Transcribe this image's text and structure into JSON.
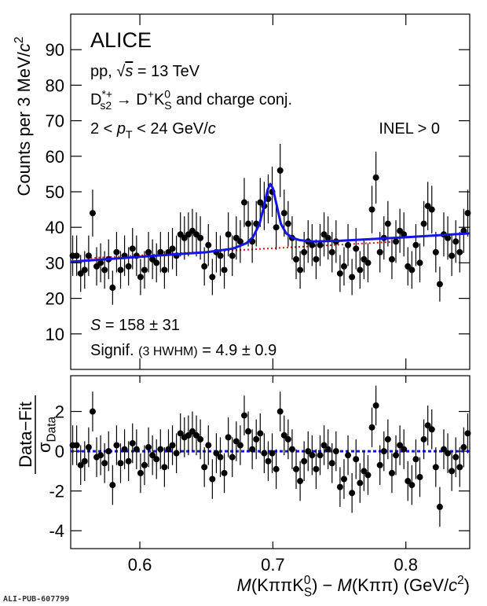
{
  "footer": "ALI-PUB-607799",
  "chart_data": [
    {
      "type": "scatter",
      "ylabel": [
        {
          "t": "Counts per 3 MeV/"
        },
        {
          "t": "c",
          "s": "it"
        },
        {
          "t": "2",
          "s": "sup"
        }
      ],
      "annotations": [
        [
          {
            "t": "ALICE"
          }
        ],
        [
          {
            "t": "pp, "
          },
          {
            "t": "√"
          },
          {
            "t": "s",
            "s": "it over"
          },
          {
            "t": " = 13 TeV"
          }
        ],
        [
          {
            "t": "D"
          },
          {
            "t": "*+",
            "s": "sup"
          },
          {
            "t": "s2",
            "s": "sub"
          },
          {
            "t": " → D"
          },
          {
            "t": "+",
            "s": "sup"
          },
          {
            "t": "K"
          },
          {
            "t": "0",
            "s": "sup"
          },
          {
            "t": "S",
            "s": "sub"
          },
          {
            "t": " and charge conj."
          }
        ],
        [
          {
            "t": "2 < "
          },
          {
            "t": "p",
            "s": "it"
          },
          {
            "t": "T",
            "s": "sub"
          },
          {
            "t": " < 24 GeV/"
          },
          {
            "t": "c",
            "s": "it"
          }
        ],
        [
          {
            "t": "INEL > 0"
          }
        ],
        [
          {
            "t": "S",
            "s": "it"
          },
          {
            "t": " = 158 ± 31"
          }
        ],
        [
          {
            "t": "Signif. "
          },
          {
            "t": "(3 HWHM)",
            "s": "small"
          },
          {
            "t": " = 4.9 ± 0.9"
          }
        ]
      ],
      "x": [
        0.5495,
        0.5525,
        0.5555,
        0.5585,
        0.5615,
        0.5645,
        0.5675,
        0.5705,
        0.5735,
        0.5765,
        0.5795,
        0.5825,
        0.5855,
        0.5885,
        0.5915,
        0.5945,
        0.5975,
        0.6005,
        0.6035,
        0.6065,
        0.6095,
        0.6125,
        0.6155,
        0.6185,
        0.6215,
        0.6245,
        0.6275,
        0.6305,
        0.6335,
        0.6365,
        0.6395,
        0.6425,
        0.6455,
        0.6485,
        0.6515,
        0.6545,
        0.6575,
        0.6605,
        0.6635,
        0.6665,
        0.6695,
        0.6725,
        0.6755,
        0.6785,
        0.6815,
        0.6845,
        0.6875,
        0.6905,
        0.6935,
        0.6965,
        0.6995,
        0.7025,
        0.7055,
        0.7085,
        0.7115,
        0.7145,
        0.7175,
        0.7205,
        0.7235,
        0.7265,
        0.7295,
        0.7325,
        0.7355,
        0.7385,
        0.7415,
        0.7445,
        0.7475,
        0.7505,
        0.7535,
        0.7565,
        0.7595,
        0.7625,
        0.7655,
        0.7685,
        0.7715,
        0.7745,
        0.7775,
        0.7805,
        0.7835,
        0.7865,
        0.7895,
        0.7925,
        0.7955,
        0.7985,
        0.8015,
        0.8045,
        0.8075,
        0.8105,
        0.8135,
        0.8165,
        0.8195,
        0.8225,
        0.8255,
        0.8285,
        0.8315,
        0.8345,
        0.8375,
        0.8405,
        0.8435,
        0.8465
      ],
      "values": [
        32,
        32,
        27,
        28,
        32,
        44,
        29,
        30,
        28,
        31,
        23,
        33,
        28,
        32,
        29,
        34,
        32,
        26,
        28,
        33,
        31,
        30,
        33,
        28,
        33,
        34,
        32,
        38,
        37,
        38,
        39,
        38,
        37,
        29,
        35,
        26,
        33,
        32,
        28,
        38,
        32,
        37,
        36,
        47,
        41,
        36,
        41,
        47,
        46,
        48,
        50,
        40,
        56,
        44,
        41,
        37,
        31,
        28,
        33,
        36,
        35,
        31,
        35,
        38,
        37,
        33,
        36,
        27,
        29,
        35,
        26,
        34,
        28,
        31,
        30,
        45,
        54,
        33,
        37,
        41,
        31,
        36,
        39,
        38,
        29,
        28,
        35,
        30,
        41,
        46,
        45,
        33,
        24,
        38,
        37,
        32,
        36,
        33,
        39,
        44
      ],
      "errors": [
        5.7,
        5.7,
        5.2,
        5.3,
        5.7,
        6.6,
        5.4,
        5.5,
        5.3,
        5.6,
        4.8,
        5.7,
        5.3,
        5.7,
        5.4,
        5.8,
        5.7,
        5.1,
        5.3,
        5.7,
        5.6,
        5.5,
        5.7,
        5.3,
        5.7,
        5.8,
        5.7,
        6.2,
        6.1,
        6.2,
        6.2,
        6.2,
        6.1,
        5.4,
        5.9,
        5.1,
        5.7,
        5.7,
        5.3,
        6.2,
        5.7,
        6.1,
        6.0,
        6.9,
        6.4,
        6.0,
        6.4,
        6.9,
        6.8,
        6.9,
        7.1,
        6.3,
        7.5,
        6.6,
        6.4,
        6.1,
        5.6,
        5.3,
        5.7,
        6.0,
        5.9,
        5.6,
        5.9,
        6.2,
        6.1,
        5.7,
        6.0,
        5.2,
        5.4,
        5.9,
        5.1,
        5.8,
        5.3,
        5.6,
        5.5,
        6.7,
        7.3,
        5.7,
        6.1,
        6.4,
        5.6,
        6.0,
        6.2,
        6.2,
        5.4,
        5.3,
        5.9,
        5.5,
        6.4,
        6.8,
        6.7,
        5.7,
        4.9,
        6.2,
        6.1,
        5.7,
        6.0,
        5.7,
        6.2,
        6.6
      ],
      "color": "#000000",
      "fit": {
        "color": "#1414e6",
        "x": [
          0.548,
          0.6,
          0.65,
          0.67,
          0.68,
          0.685,
          0.69,
          0.693,
          0.696,
          0.698,
          0.7,
          0.703,
          0.706,
          0.71,
          0.715,
          0.72,
          0.73,
          0.75,
          0.8,
          0.848
        ],
        "y": [
          30.3,
          31.7,
          33.0,
          34.0,
          35.5,
          37.2,
          41.0,
          45.5,
          50.5,
          52.2,
          51.0,
          46.0,
          41.0,
          38.3,
          37.0,
          36.4,
          36.0,
          36.2,
          37.2,
          38.3
        ]
      },
      "background": {
        "color": "#dd1111",
        "x": [
          0.56,
          0.79
        ],
        "y": [
          31.3,
          35.9
        ]
      },
      "xlim": [
        0.548,
        0.848
      ],
      "ylim": [
        0,
        100
      ],
      "xticks": [
        0.6,
        0.7,
        0.8
      ],
      "yticks": [
        10,
        20,
        30,
        40,
        50,
        60,
        70,
        80,
        90
      ]
    },
    {
      "type": "scatter",
      "ylabel_num": [
        {
          "t": "Data−Fit"
        }
      ],
      "ylabel_den": [
        {
          "t": "σ"
        },
        {
          "t": "Data",
          "s": "sub"
        }
      ],
      "xlabel": [
        {
          "t": "M",
          "s": "it"
        },
        {
          "t": "(KππK"
        },
        {
          "t": "0",
          "s": "sup"
        },
        {
          "t": "S",
          "s": "sub"
        },
        {
          "t": ") − "
        },
        {
          "t": "M",
          "s": "it"
        },
        {
          "t": "(Kππ) (GeV/"
        },
        {
          "t": "c",
          "s": "it"
        },
        {
          "t": "2",
          "s": "sup"
        },
        {
          "t": ")"
        }
      ],
      "values": [
        0.3,
        0.3,
        -0.7,
        -0.5,
        0.2,
        2.0,
        -0.3,
        -0.2,
        -0.6,
        0,
        -1.7,
        0.3,
        -0.6,
        0.1,
        -0.5,
        0.4,
        0.1,
        -1.1,
        -0.7,
        0.2,
        -0.2,
        -0.4,
        0.1,
        -0.8,
        0.1,
        0.3,
        -0.1,
        0.9,
        0.7,
        0.8,
        1.0,
        0.8,
        0.6,
        -0.8,
        0.3,
        -1.4,
        -0.1,
        -0.3,
        -1.1,
        0.7,
        -0.3,
        0.5,
        0.3,
        1.8,
        1.0,
        0.1,
        0.6,
        0.9,
        -0.1,
        -0.5,
        -0.1,
        -0.9,
        2.0,
        0.8,
        0.6,
        0.1,
        -0.9,
        -1.5,
        -0.5,
        0,
        -0.2,
        -0.9,
        -0.2,
        0.3,
        0.1,
        -0.6,
        0,
        -1.8,
        -1.4,
        -0.2,
        -2.1,
        -0.4,
        -1.6,
        -1.0,
        -1.2,
        1.2,
        2.3,
        -0.7,
        0,
        0.6,
        -1.1,
        -0.2,
        0.3,
        0.1,
        -1.5,
        -1.7,
        -0.4,
        -1.3,
        0.6,
        1.3,
        1.1,
        -0.8,
        -2.8,
        0.1,
        -0.1,
        -1.0,
        -0.3,
        -0.8,
        0.2,
        0.9
      ],
      "error": 1,
      "fit_value": 0,
      "fit_color": "#1414e6",
      "color": "#000000",
      "xlim": [
        0.548,
        0.848
      ],
      "ylim": [
        -4.9,
        3.8
      ],
      "xticks": [
        0.6,
        0.7,
        0.8
      ],
      "yticks": [
        -4,
        -2,
        0,
        2
      ]
    }
  ]
}
